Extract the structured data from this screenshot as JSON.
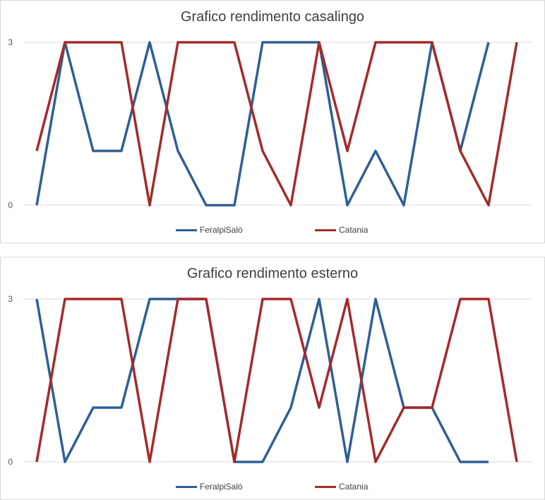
{
  "chart_data": [
    {
      "type": "line",
      "title": "Grafico rendimento casalingo",
      "xlabel": "",
      "ylabel": "",
      "ylim": [
        0,
        3
      ],
      "yticks": [
        "0",
        "3"
      ],
      "grid": true,
      "legend": "bottom",
      "x": [
        1,
        2,
        3,
        4,
        5,
        6,
        7,
        8,
        9,
        10,
        11,
        12,
        13,
        14,
        15,
        16,
        17,
        18,
        19
      ],
      "series": [
        {
          "name": "FeralpiSalò",
          "color": "#2e5f96",
          "values": [
            0,
            3,
            1,
            1,
            3,
            1,
            0,
            0,
            3,
            3,
            3,
            0,
            1,
            0,
            3,
            1,
            3,
            null,
            null
          ]
        },
        {
          "name": "Catania",
          "color": "#a52a2a",
          "values": [
            1,
            3,
            3,
            3,
            0,
            3,
            3,
            3,
            1,
            0,
            3,
            1,
            3,
            3,
            3,
            1,
            0,
            3,
            null
          ]
        }
      ]
    },
    {
      "type": "line",
      "title": "Grafico rendimento esterno",
      "xlabel": "",
      "ylabel": "",
      "ylim": [
        0,
        3
      ],
      "yticks": [
        "0",
        "3"
      ],
      "grid": true,
      "legend": "bottom",
      "x": [
        1,
        2,
        3,
        4,
        5,
        6,
        7,
        8,
        9,
        10,
        11,
        12,
        13,
        14,
        15,
        16,
        17,
        18,
        19
      ],
      "series": [
        {
          "name": "FeralpiSalò",
          "color": "#2e5f96",
          "values": [
            3,
            0,
            1,
            1,
            3,
            3,
            3,
            0,
            0,
            1,
            3,
            0,
            3,
            1,
            1,
            0,
            0,
            null,
            null
          ]
        },
        {
          "name": "Catania",
          "color": "#a52a2a",
          "values": [
            0,
            3,
            3,
            3,
            0,
            3,
            3,
            0,
            3,
            3,
            1,
            3,
            0,
            1,
            1,
            3,
            3,
            0,
            null
          ]
        }
      ]
    }
  ]
}
